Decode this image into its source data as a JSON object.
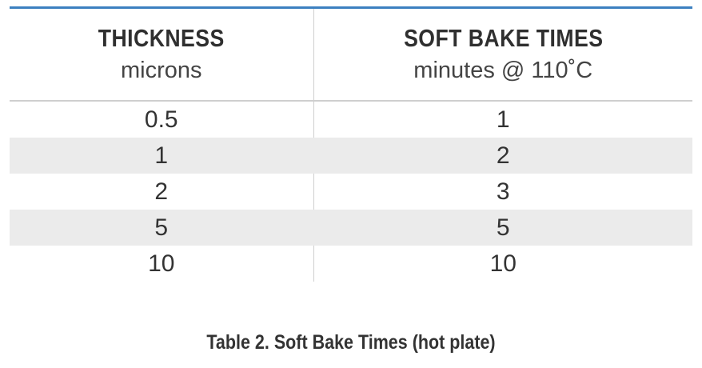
{
  "table": {
    "columns": [
      {
        "title": "THICKNESS",
        "subtitle": "microns"
      },
      {
        "title": "SOFT BAKE TIMES",
        "subtitle": "minutes @ 110˚C"
      }
    ],
    "rows": [
      {
        "thickness": "0.5",
        "time": "1"
      },
      {
        "thickness": "1",
        "time": "2"
      },
      {
        "thickness": "2",
        "time": "3"
      },
      {
        "thickness": "5",
        "time": "5"
      },
      {
        "thickness": "10",
        "time": "10"
      }
    ],
    "alt_row_color": "#ebebeb",
    "accent_color": "#3c80c0"
  },
  "caption": "Table 2. Soft Bake Times (hot plate)"
}
